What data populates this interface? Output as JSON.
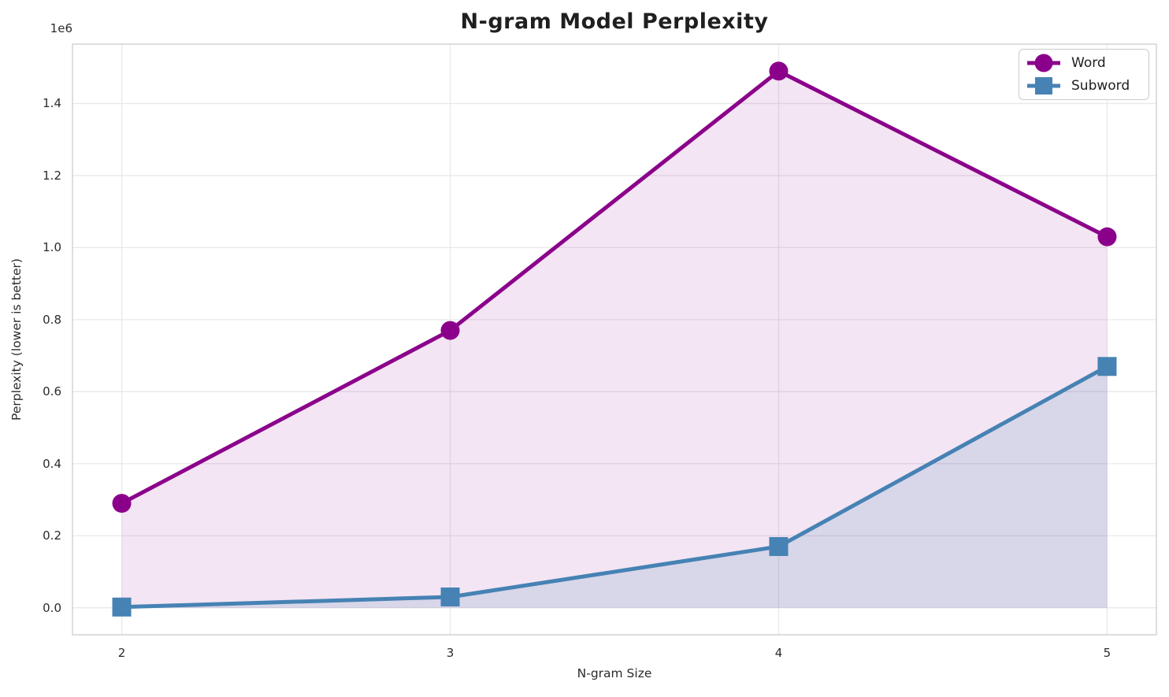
{
  "chart_data": {
    "type": "line",
    "title": "N-gram Model Perplexity",
    "xlabel": "N-gram Size",
    "ylabel": "Perplexity (lower is better)",
    "x": [
      2,
      3,
      4,
      5
    ],
    "series": [
      {
        "name": "Word",
        "values": [
          290000,
          770000,
          1490000,
          1030000
        ],
        "color": "#8B008B",
        "marker": "circle",
        "fill_alpha": 0.1
      },
      {
        "name": "Subword",
        "values": [
          2000,
          30000,
          170000,
          670000
        ],
        "color": "#4682B4",
        "marker": "square",
        "fill_alpha": 0.15
      }
    ],
    "xlim": [
      1.85,
      5.15
    ],
    "ylim": [
      -75000,
      1565000
    ],
    "xticks": [
      2,
      3,
      4,
      5
    ],
    "xtick_labels": [
      "2",
      "3",
      "4",
      "5"
    ],
    "ytick_values": [
      0,
      200000,
      400000,
      600000,
      800000,
      1000000,
      1200000,
      1400000
    ],
    "ytick_labels": [
      "0.0",
      "0.2",
      "0.4",
      "0.6",
      "0.8",
      "1.0",
      "1.2",
      "1.4"
    ],
    "offset_text": "1e6",
    "grid": true,
    "grid_color": "#e9e9e9",
    "spine_color": "#cccccc",
    "legend_position": "upper right",
    "fill_baseline": 0
  }
}
